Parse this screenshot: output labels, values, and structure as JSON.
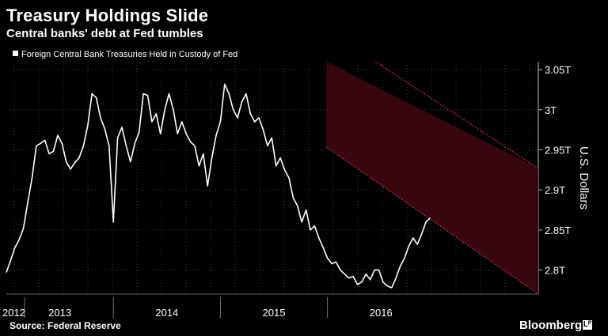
{
  "header": {
    "title": "Treasury Holdings Slide",
    "subtitle": "Central banks' debt at Fed tumbles"
  },
  "footer": {
    "source": "Source: Federal Reserve",
    "brand": "Bloomberg",
    "brand_mark": "Lᴾ"
  },
  "colors": {
    "background": "#000000",
    "line": "#ffffff",
    "channel_fill": "#3a0610",
    "channel_border": "#c42a44",
    "grid": "#3a3a3a"
  },
  "chart_data": {
    "type": "line",
    "legend": "Foreign Central Bank Treasuries Held in Custody of Fed",
    "legend_position": "top-left",
    "ylabel": "U.S. Dollars",
    "ylim": [
      2.77,
      3.06
    ],
    "yticks": [
      {
        "value": 2.8,
        "label": "2.8T"
      },
      {
        "value": 2.85,
        "label": "2.85T"
      },
      {
        "value": 2.9,
        "label": "2.9T"
      },
      {
        "value": 2.95,
        "label": "2.95T"
      },
      {
        "value": 3.0,
        "label": "3T"
      },
      {
        "value": 3.05,
        "label": "3.05T"
      }
    ],
    "xlim": [
      2012.0,
      2016.97
    ],
    "year_labels": [
      {
        "value": 2012.07,
        "label": "2012"
      },
      {
        "value": 2012.5,
        "label": "2013"
      },
      {
        "value": 2013.5,
        "label": "2014"
      },
      {
        "value": 2014.5,
        "label": "2015"
      },
      {
        "value": 2015.5,
        "label": "2016"
      }
    ],
    "year_boundaries": [
      2012.17,
      2013.0,
      2014.0,
      2015.0
    ],
    "grid": true,
    "series": [
      {
        "name": "Foreign Central Bank Treasuries Held in Custody of Fed",
        "x": [
          2012.0,
          2012.04,
          2012.08,
          2012.12,
          2012.16,
          2012.2,
          2012.24,
          2012.28,
          2012.32,
          2012.36,
          2012.4,
          2012.44,
          2012.48,
          2012.52,
          2012.56,
          2012.6,
          2012.64,
          2012.68,
          2012.72,
          2012.76,
          2012.8,
          2012.84,
          2012.88,
          2012.92,
          2012.96,
          2013.0,
          2013.04,
          2013.08,
          2013.12,
          2013.16,
          2013.2,
          2013.24,
          2013.28,
          2013.32,
          2013.36,
          2013.4,
          2013.44,
          2013.48,
          2013.52,
          2013.56,
          2013.6,
          2013.64,
          2013.68,
          2013.72,
          2013.76,
          2013.8,
          2013.84,
          2013.88,
          2013.92,
          2013.96,
          2014.0,
          2014.04,
          2014.08,
          2014.12,
          2014.16,
          2014.2,
          2014.24,
          2014.28,
          2014.32,
          2014.36,
          2014.4,
          2014.44,
          2014.48,
          2014.52,
          2014.56,
          2014.6,
          2014.64,
          2014.68,
          2014.72,
          2014.76,
          2014.8,
          2014.84,
          2014.88,
          2014.92,
          2014.96,
          2015.0,
          2015.04,
          2015.08,
          2015.12,
          2015.16,
          2015.2,
          2015.24,
          2015.28,
          2015.32,
          2015.36,
          2015.4,
          2015.44,
          2015.48,
          2015.52,
          2015.56,
          2015.6,
          2015.64,
          2015.68,
          2015.72,
          2015.76,
          2015.8,
          2015.84,
          2015.88,
          2015.92,
          2015.96
        ],
        "values": [
          2.797,
          2.812,
          2.828,
          2.838,
          2.852,
          2.884,
          2.915,
          2.955,
          2.958,
          2.962,
          2.945,
          2.948,
          2.968,
          2.958,
          2.935,
          2.926,
          2.934,
          2.94,
          2.955,
          2.98,
          3.02,
          3.015,
          2.99,
          2.976,
          2.955,
          2.86,
          2.965,
          2.978,
          2.955,
          2.935,
          2.958,
          2.972,
          3.02,
          3.018,
          2.985,
          2.995,
          2.97,
          3.0,
          3.02,
          3.0,
          2.97,
          2.985,
          2.97,
          2.96,
          2.955,
          2.93,
          2.945,
          2.905,
          2.94,
          2.968,
          2.985,
          3.032,
          3.02,
          3.0,
          2.99,
          3.01,
          3.02,
          2.995,
          2.985,
          2.99,
          2.975,
          2.955,
          2.965,
          2.93,
          2.94,
          2.925,
          2.915,
          2.89,
          2.88,
          2.86,
          2.875,
          2.85,
          2.855,
          2.84,
          2.828,
          2.815,
          2.808,
          2.81,
          2.8,
          2.795,
          2.79,
          2.792,
          2.782,
          2.785,
          2.795,
          2.788,
          2.8,
          2.8,
          2.785,
          2.78,
          2.778,
          2.79,
          2.805,
          2.815,
          2.83,
          2.84,
          2.832,
          2.845,
          2.86,
          2.865
        ]
      }
    ],
    "annotations": [
      {
        "type": "downtrend-channel",
        "x0": 2014.99,
        "x1": 2016.97
      }
    ]
  }
}
